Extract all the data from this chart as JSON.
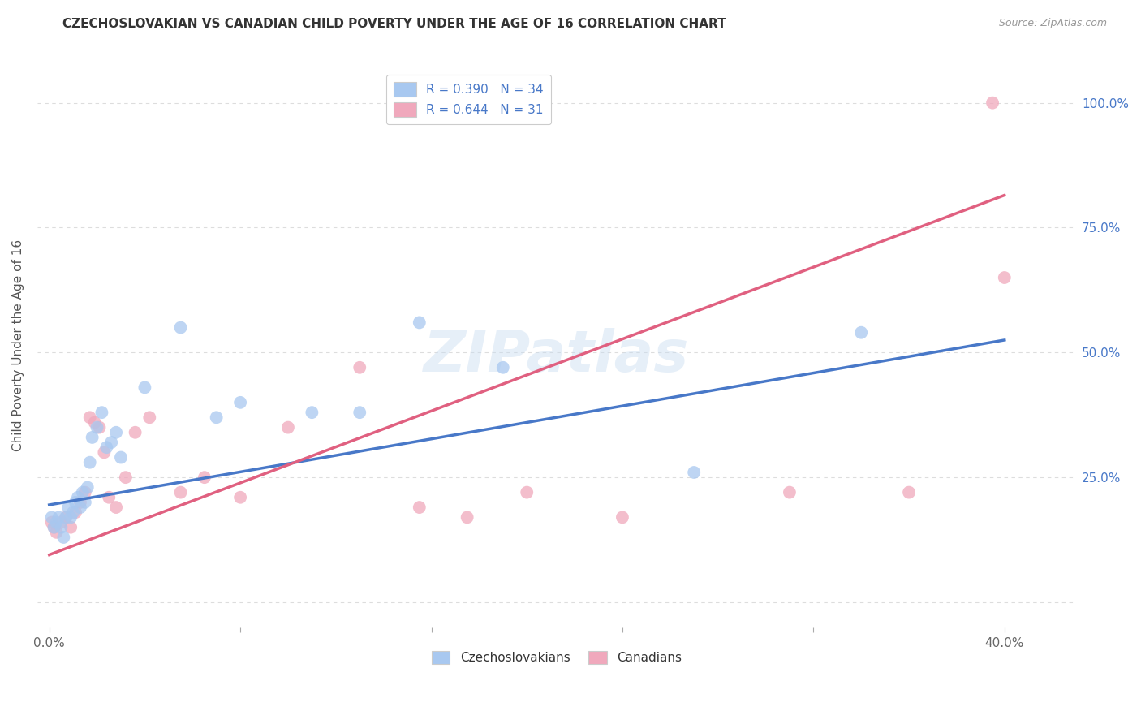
{
  "title": "CZECHOSLOVAKIAN VS CANADIAN CHILD POVERTY UNDER THE AGE OF 16 CORRELATION CHART",
  "source": "Source: ZipAtlas.com",
  "ylabel": "Child Poverty Under the Age of 16",
  "legend_text_blue": "R = 0.390   N = 34",
  "legend_text_pink": "R = 0.644   N = 31",
  "blue_color": "#A8C8F0",
  "pink_color": "#F0A8BC",
  "blue_line_color": "#4878C8",
  "pink_line_color": "#E06080",
  "watermark": "ZIPatlas",
  "czechoslovakian_x": [
    0.001,
    0.002,
    0.003,
    0.004,
    0.005,
    0.006,
    0.007,
    0.008,
    0.009,
    0.01,
    0.011,
    0.012,
    0.013,
    0.014,
    0.015,
    0.016,
    0.017,
    0.018,
    0.02,
    0.022,
    0.024,
    0.026,
    0.028,
    0.03,
    0.04,
    0.055,
    0.07,
    0.08,
    0.11,
    0.13,
    0.155,
    0.19,
    0.27,
    0.34
  ],
  "czechoslovakian_y": [
    0.17,
    0.15,
    0.16,
    0.17,
    0.15,
    0.13,
    0.17,
    0.19,
    0.17,
    0.18,
    0.2,
    0.21,
    0.19,
    0.22,
    0.2,
    0.23,
    0.28,
    0.33,
    0.35,
    0.38,
    0.31,
    0.32,
    0.34,
    0.29,
    0.43,
    0.55,
    0.37,
    0.4,
    0.38,
    0.38,
    0.56,
    0.47,
    0.26,
    0.54
  ],
  "canadian_x": [
    0.001,
    0.002,
    0.003,
    0.005,
    0.007,
    0.009,
    0.011,
    0.013,
    0.015,
    0.017,
    0.019,
    0.021,
    0.023,
    0.025,
    0.028,
    0.032,
    0.036,
    0.042,
    0.055,
    0.065,
    0.08,
    0.1,
    0.13,
    0.155,
    0.175,
    0.2,
    0.24,
    0.31,
    0.36,
    0.395,
    0.4
  ],
  "canadian_y": [
    0.16,
    0.15,
    0.14,
    0.16,
    0.17,
    0.15,
    0.18,
    0.2,
    0.22,
    0.37,
    0.36,
    0.35,
    0.3,
    0.21,
    0.19,
    0.25,
    0.34,
    0.37,
    0.22,
    0.25,
    0.21,
    0.35,
    0.47,
    0.19,
    0.17,
    0.22,
    0.17,
    0.22,
    0.22,
    1.0,
    0.65
  ],
  "blue_trendline_x": [
    0.0,
    0.4
  ],
  "blue_trendline_y": [
    0.195,
    0.525
  ],
  "pink_trendline_x": [
    0.0,
    0.4
  ],
  "pink_trendline_y": [
    0.095,
    0.815
  ],
  "xlim": [
    -0.005,
    0.43
  ],
  "ylim": [
    -0.05,
    1.08
  ],
  "xtick_positions": [
    0.0,
    0.08,
    0.16,
    0.24,
    0.32,
    0.4
  ],
  "xtick_labels": [
    "0.0%",
    "",
    "",
    "",
    "",
    "40.0%"
  ],
  "ytick_positions": [
    0.0,
    0.25,
    0.5,
    0.75,
    1.0
  ],
  "ytick_labels_right": [
    "",
    "25.0%",
    "50.0%",
    "75.0%",
    "100.0%"
  ],
  "grid_color": "#DDDDDD",
  "title_fontsize": 11,
  "axis_label_fontsize": 11,
  "tick_fontsize": 11,
  "scatter_size": 130,
  "scatter_alpha": 0.75
}
